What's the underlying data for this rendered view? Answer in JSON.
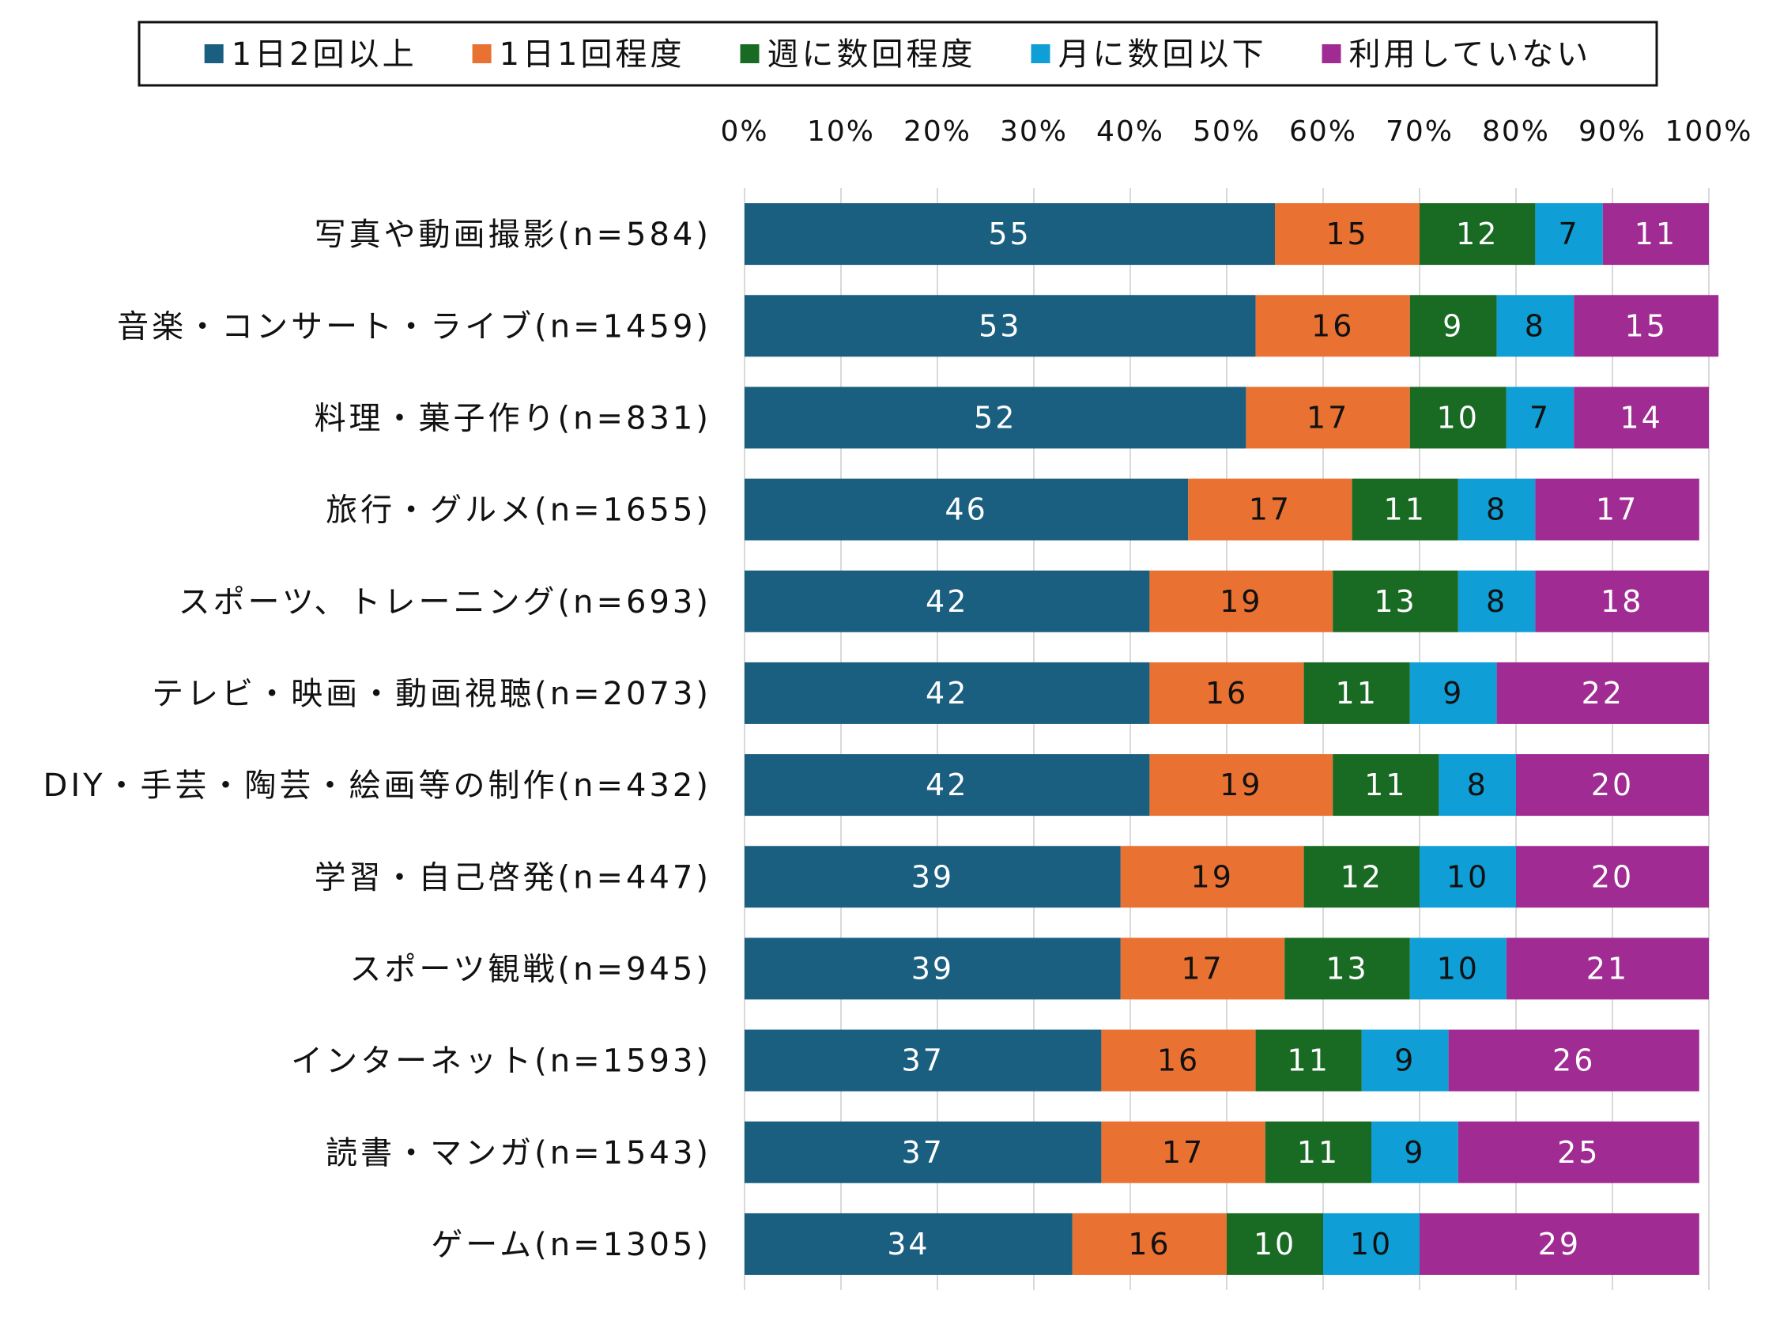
{
  "chart_data": {
    "type": "bar",
    "orientation": "horizontal",
    "stacked": true,
    "xlim": [
      0,
      100
    ],
    "x_ticks": [
      "0%",
      "10%",
      "20%",
      "30%",
      "40%",
      "50%",
      "60%",
      "70%",
      "80%",
      "90%",
      "100%"
    ],
    "tick_position": "top",
    "grid": true,
    "legend_position": "top",
    "categories": [
      "写真や動画撮影(n=584)",
      "音楽・コンサート・ライブ(n=1459)",
      "料理・菓子作り(n=831)",
      "旅行・グルメ(n=1655)",
      "スポーツ、トレーニング(n=693)",
      "テレビ・映画・動画視聴(n=2073)",
      "DIY・手芸・陶芸・絵画等の制作(n=432)",
      "学習・自己啓発(n=447)",
      "スポーツ観戦(n=945)",
      "インターネット(n=1593)",
      "読書・マンガ(n=1543)",
      "ゲーム(n=1305)"
    ],
    "series": [
      {
        "name": "1日2回以上",
        "color": "#1a5f80",
        "label_color": "#ffffff",
        "values": [
          55,
          53,
          52,
          46,
          42,
          42,
          42,
          39,
          39,
          37,
          37,
          34
        ]
      },
      {
        "name": "1日1回程度",
        "color": "#e97132",
        "label_color": "#111111",
        "values": [
          15,
          16,
          17,
          17,
          19,
          16,
          19,
          19,
          17,
          16,
          17,
          16
        ]
      },
      {
        "name": "週に数回程度",
        "color": "#196b24",
        "label_color": "#ffffff",
        "values": [
          12,
          9,
          10,
          11,
          13,
          11,
          11,
          12,
          13,
          11,
          11,
          10
        ]
      },
      {
        "name": "月に数回以下",
        "color": "#0f9ed5",
        "label_color": "#111111",
        "values": [
          7,
          8,
          7,
          8,
          8,
          9,
          8,
          10,
          10,
          9,
          9,
          10
        ]
      },
      {
        "name": "利用していない",
        "color": "#a02b93",
        "label_color": "#ffffff",
        "values": [
          11,
          15,
          14,
          17,
          18,
          22,
          20,
          20,
          21,
          26,
          25,
          29
        ]
      }
    ]
  }
}
